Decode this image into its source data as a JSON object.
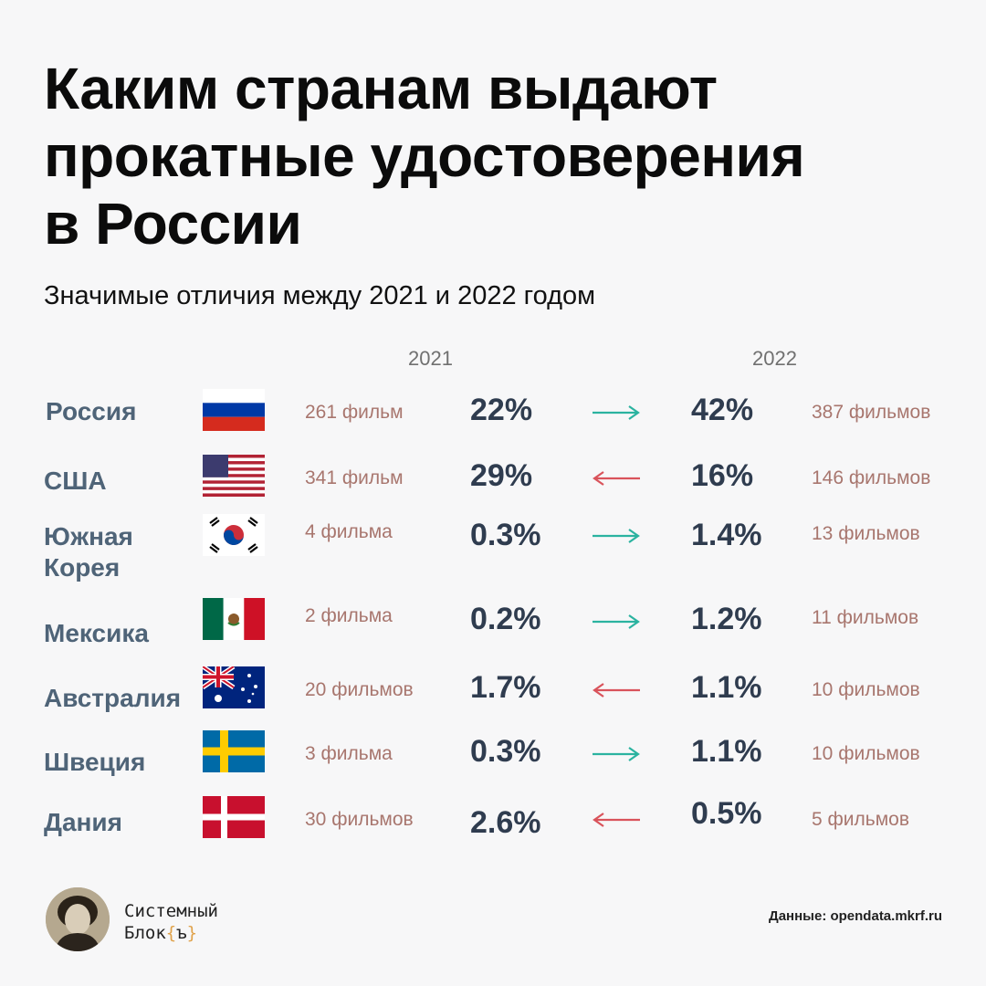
{
  "chart_data": {
    "type": "table",
    "title": [
      "Каким странам выдают",
      "прокатные удостоверения",
      "в России"
    ],
    "subtitle": "Значимые отличия между 2021 и 2022 годом",
    "columns": [
      "2021",
      "2022"
    ],
    "rows": [
      {
        "country": "Россия",
        "flag": "russia-flag",
        "films_2021": "261 фильм",
        "pct_2021": "22%",
        "direction": "up",
        "pct_2022": "42%",
        "films_2022": "387 фильмов"
      },
      {
        "country": "США",
        "flag": "usa-flag",
        "films_2021": "341 фильм",
        "pct_2021": "29%",
        "direction": "down",
        "pct_2022": "16%",
        "films_2022": "146 фильмов"
      },
      {
        "country": "Южная Корея",
        "flag": "south-korea-flag",
        "films_2021": "4 фильма",
        "pct_2021": "0.3%",
        "direction": "up",
        "pct_2022": "1.4%",
        "films_2022": "13 фильмов"
      },
      {
        "country": "Мексика",
        "flag": "mexico-flag",
        "films_2021": "2 фильма",
        "pct_2021": "0.2%",
        "direction": "up",
        "pct_2022": "1.2%",
        "films_2022": "11 фильмов"
      },
      {
        "country": "Австралия",
        "flag": "australia-flag",
        "films_2021": "20 фильмов",
        "pct_2021": "1.7%",
        "direction": "down",
        "pct_2022": "1.1%",
        "films_2022": "10 фильмов"
      },
      {
        "country": "Швеция",
        "flag": "sweden-flag",
        "films_2021": "3 фильма",
        "pct_2021": "0.3%",
        "direction": "up",
        "pct_2022": "1.1%",
        "films_2022": "10 фильмов"
      },
      {
        "country": "Дания",
        "flag": "denmark-flag",
        "films_2021": "30 фильмов",
        "pct_2021": "2.6%",
        "direction": "down",
        "pct_2022": "0.5%",
        "films_2022": "5 фильмов"
      }
    ],
    "colors": {
      "up": "#2bb3a0",
      "down": "#d9535b",
      "country": "#4f6478",
      "films": "#a8766e",
      "pct": "#2f3c4f"
    }
  },
  "brand": {
    "line1": "Системный",
    "line2_prefix": "Блок",
    "line2_brace_open": "{",
    "line2_mid": "ъ",
    "line2_brace_close": "}"
  },
  "source": "Данные: opendata.mkrf.ru"
}
